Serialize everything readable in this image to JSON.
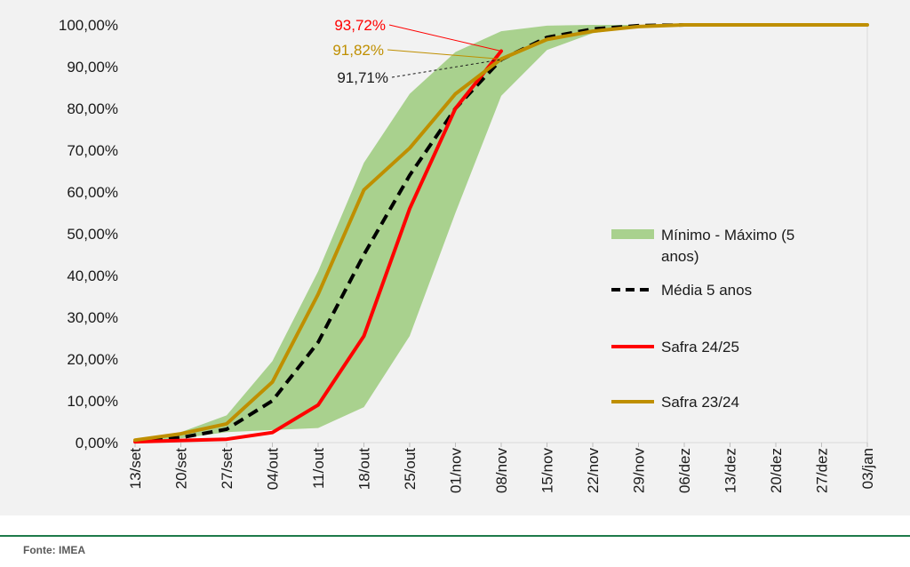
{
  "chart_data": {
    "type": "line",
    "categories": [
      "13/set",
      "20/set",
      "27/set",
      "04/out",
      "11/out",
      "18/out",
      "25/out",
      "01/nov",
      "08/nov",
      "15/nov",
      "22/nov",
      "29/nov",
      "06/dez",
      "13/dez",
      "20/dez",
      "27/dez",
      "03/jan"
    ],
    "ylim": [
      0,
      100
    ],
    "y_ticks": [
      "0,00%",
      "10,00%",
      "20,00%",
      "30,00%",
      "40,00%",
      "50,00%",
      "60,00%",
      "70,00%",
      "80,00%",
      "90,00%",
      "100,00%"
    ],
    "band": {
      "name": "Mínimo - Máximo (5 anos)",
      "legend_lines": [
        "Mínimo - Máximo (5",
        "anos)"
      ],
      "color": "#a9d18e",
      "min": [
        0.2,
        1.0,
        2.5,
        3.0,
        3.5,
        8.5,
        25.5,
        55.0,
        83.0,
        94.0,
        98.0,
        99.5,
        100,
        100,
        100,
        100,
        100
      ],
      "max": [
        0.8,
        2.5,
        6.5,
        19.5,
        41.0,
        67.0,
        83.5,
        93.5,
        98.5,
        99.8,
        100,
        100,
        100,
        100,
        100,
        100,
        100
      ]
    },
    "series": [
      {
        "name": "Média 5 anos",
        "color": "#000000",
        "dashed": true,
        "values": [
          0.3,
          1.2,
          3.2,
          10.0,
          24.0,
          45.0,
          64.0,
          80.0,
          91.71,
          97.0,
          99.0,
          99.8,
          100,
          100,
          null,
          null,
          null
        ]
      },
      {
        "name": "Safra 24/25",
        "color": "#ff0000",
        "dashed": false,
        "values": [
          0.2,
          0.5,
          0.8,
          2.4,
          9.0,
          25.5,
          56.0,
          80.0,
          93.72,
          null,
          null,
          null,
          null,
          null,
          null,
          null,
          null
        ]
      },
      {
        "name": "Safra 23/24",
        "color": "#bf8f00",
        "dashed": false,
        "values": [
          0.6,
          2.1,
          4.5,
          14.5,
          35.5,
          60.5,
          70.5,
          83.5,
          91.82,
          96.5,
          98.5,
          99.6,
          100,
          100,
          100,
          100,
          100
        ]
      }
    ],
    "annotations": [
      {
        "text": "93,72%",
        "series": "Safra 24/25",
        "color": "#ff0000"
      },
      {
        "text": "91,82%",
        "series": "Safra 23/24",
        "color": "#bf8f00"
      },
      {
        "text": "91,71%",
        "series": "Média 5 anos",
        "color": "#1a1a1a"
      }
    ],
    "legend_position": "right"
  },
  "footer": {
    "source": "Fonte: IMEA",
    "divider_color": "#1e7a4a"
  }
}
